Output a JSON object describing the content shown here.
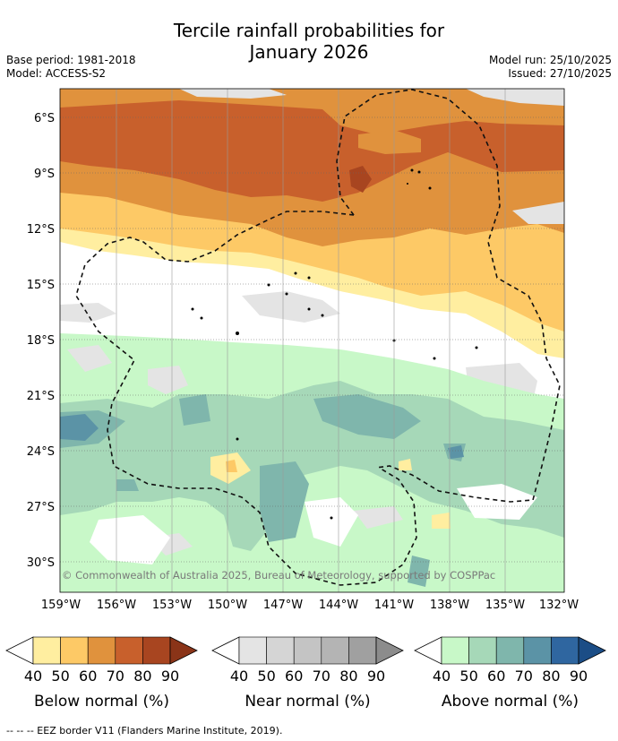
{
  "title": {
    "line1": "Tercile rainfall probabilities for",
    "line2": "January 2026"
  },
  "meta": {
    "base_period": "Base period: 1981-2018",
    "model": "Model: ACCESS-S2",
    "model_run": "Model run: 25/10/2025",
    "issued": "Issued: 27/10/2025"
  },
  "map": {
    "lat_labels": [
      "6°S",
      "9°S",
      "12°S",
      "15°S",
      "18°S",
      "21°S",
      "24°S",
      "27°S",
      "30°S"
    ],
    "lon_labels": [
      "159°W",
      "156°W",
      "153°W",
      "150°W",
      "147°W",
      "144°W",
      "141°W",
      "138°W",
      "135°W",
      "132°W"
    ],
    "copyright": "© Commonwealth of Australia 2025, Bureau of Meteorology, supported by COSPPac"
  },
  "colorbars": [
    {
      "title": "Below normal (%)",
      "ticks": [
        "40",
        "50",
        "60",
        "70",
        "80",
        "90"
      ],
      "colors": [
        "#ffeea0",
        "#fdc966",
        "#e0923d",
        "#c8602c",
        "#a84520",
        "#8a3418"
      ]
    },
    {
      "title": "Near normal (%)",
      "ticks": [
        "40",
        "50",
        "60",
        "70",
        "80",
        "90"
      ],
      "colors": [
        "#e4e4e4",
        "#d5d5d5",
        "#c4c4c4",
        "#b4b4b4",
        "#a0a0a0",
        "#8c8c8c"
      ]
    },
    {
      "title": "Above normal (%)",
      "ticks": [
        "40",
        "50",
        "60",
        "70",
        "80",
        "90"
      ],
      "colors": [
        "#c8f8c8",
        "#a6d8b8",
        "#7fb6ac",
        "#5b93a6",
        "#2f66a0",
        "#1b4d86"
      ]
    }
  ],
  "footnote": "--  --  -- EEZ border V11 (Flanders Marine Institute, 2019)."
}
